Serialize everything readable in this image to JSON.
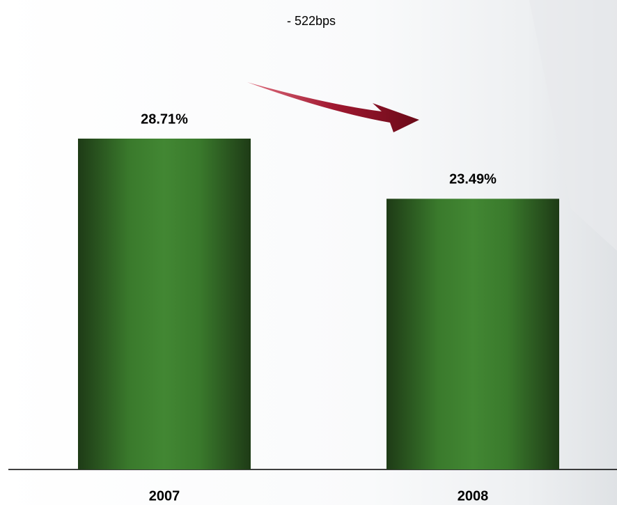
{
  "chart_data": {
    "type": "bar",
    "annotation": "- 522bps",
    "categories": [
      "2007",
      "2008"
    ],
    "values": [
      28.71,
      23.49
    ],
    "value_labels": [
      "28.71%",
      "23.49%"
    ],
    "color": "#3f8530"
  }
}
